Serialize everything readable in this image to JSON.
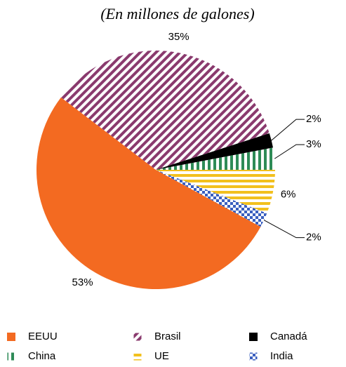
{
  "chart_data": {
    "type": "pie",
    "subtitle": "(En millones de galones)",
    "categories": [
      "EEUU",
      "Brasil",
      "Canadá",
      "China",
      "UE",
      "India"
    ],
    "values": [
      53,
      35,
      2,
      3,
      6,
      2
    ],
    "value_labels": [
      "53%",
      "35%",
      "2%",
      "3%",
      "6%",
      "2%"
    ],
    "colors": [
      "#f36a21",
      "#8a3a6e",
      "#000000",
      "#2e8b57",
      "#f2c01e",
      "#3a5fbf"
    ],
    "legend": "bottom"
  }
}
